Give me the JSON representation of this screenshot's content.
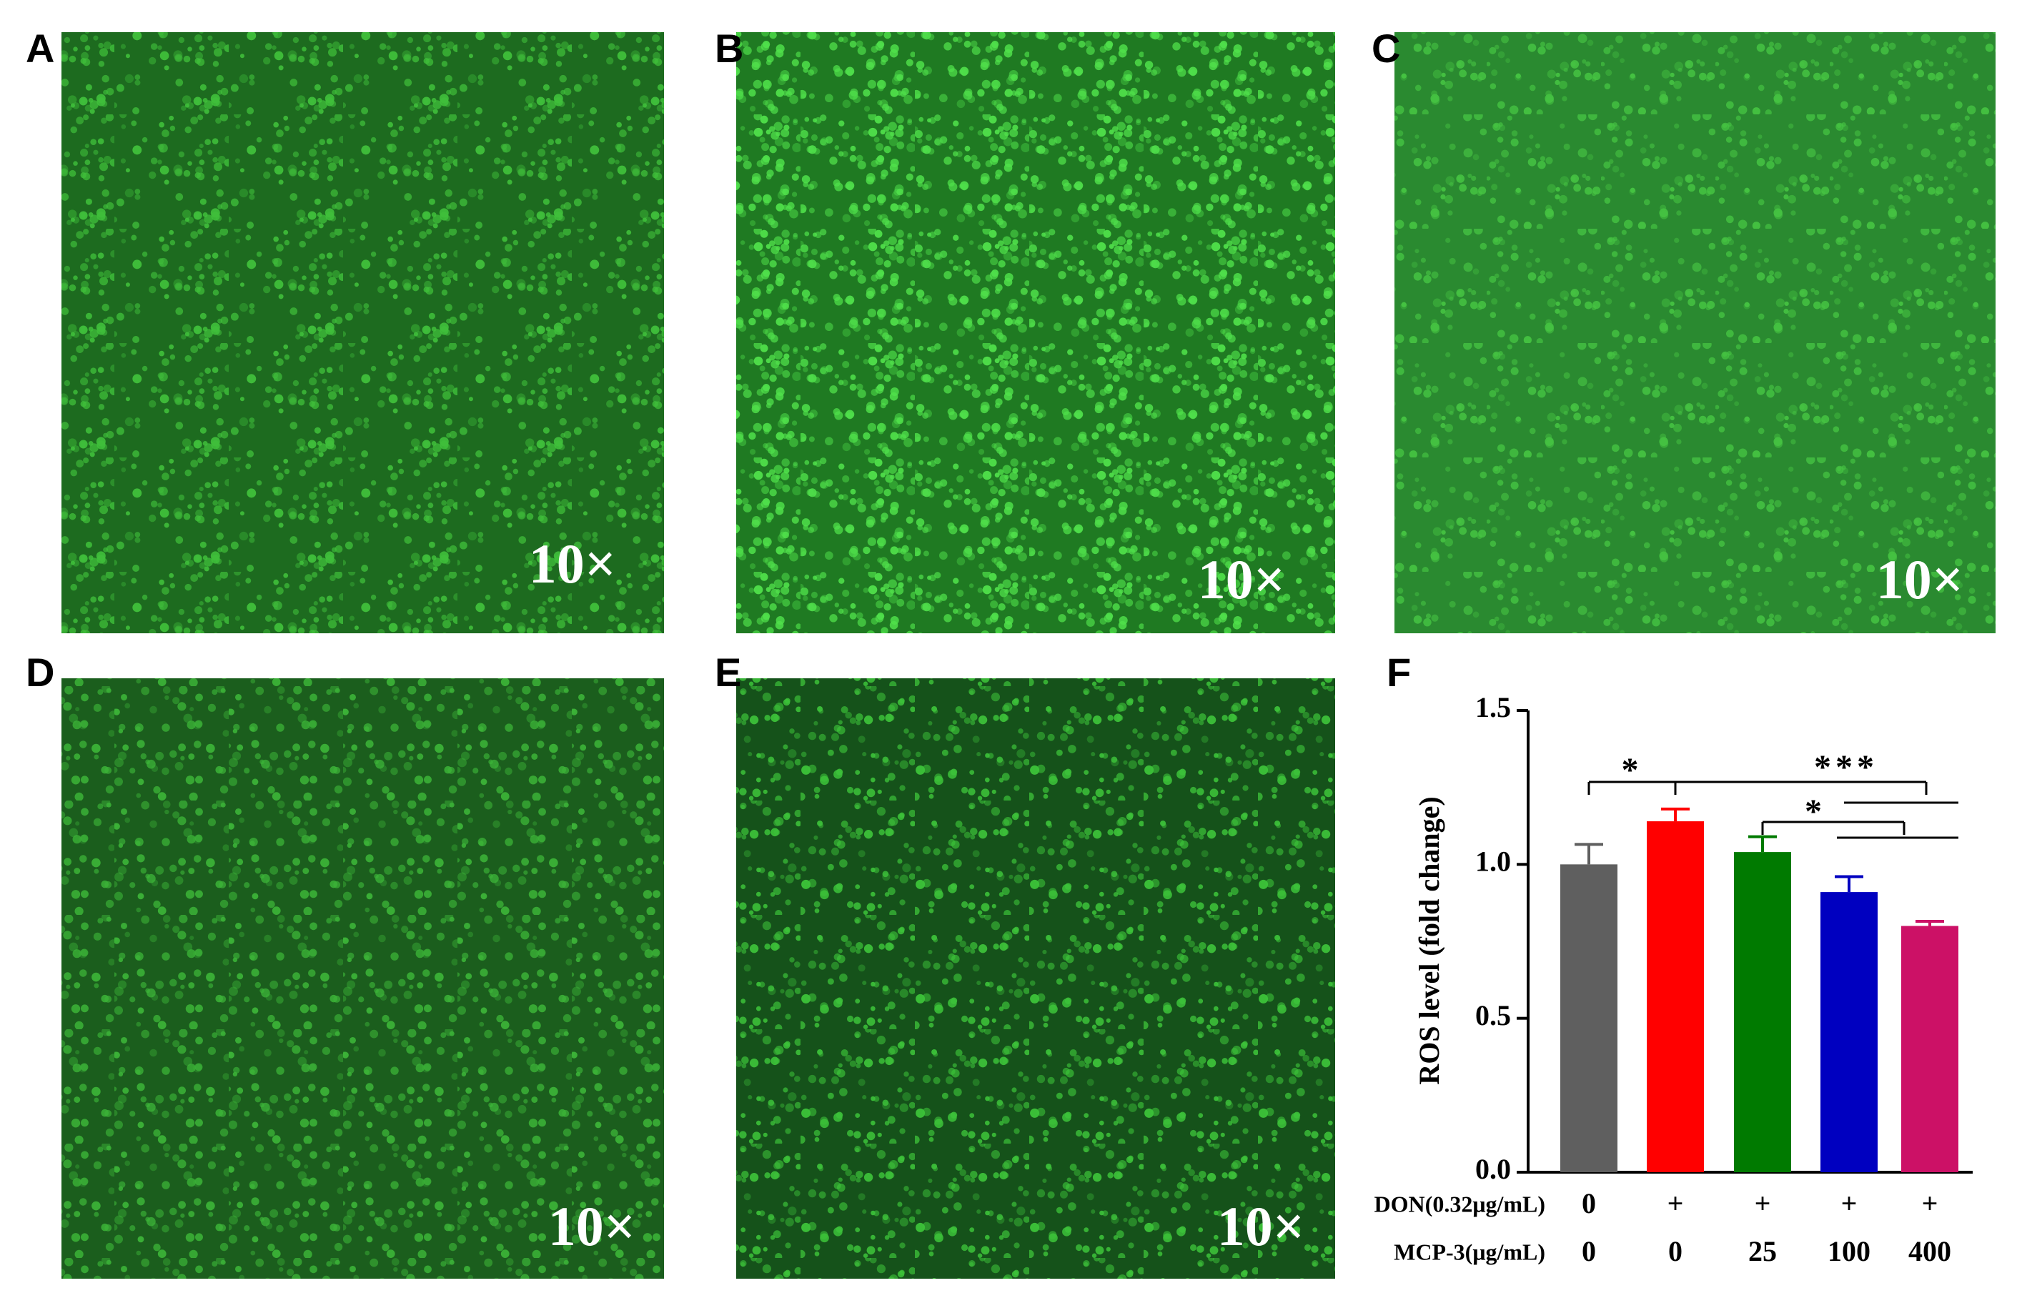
{
  "panels": [
    {
      "label": "A",
      "magnification": "10×"
    },
    {
      "label": "B",
      "magnification": "10×"
    },
    {
      "label": "C",
      "magnification": "10×"
    },
    {
      "label": "D",
      "magnification": "10×"
    },
    {
      "label": "E",
      "magnification": "10×"
    }
  ],
  "chart_data": {
    "type": "bar",
    "panel_label": "F",
    "y_label": "ROS level (fold change)",
    "ylim": [
      0,
      1.5
    ],
    "yticks": [
      {
        "value": 0,
        "label": "0.0"
      },
      {
        "value": 0.5,
        "label": "0.5"
      },
      {
        "value": 1,
        "label": "1.0"
      },
      {
        "value": 1.5,
        "label": "1.5"
      }
    ],
    "values": [
      1.0,
      1.14,
      1.04,
      0.91,
      0.8
    ],
    "errors": [
      0.065,
      0.04,
      0.05,
      0.05,
      0.015
    ],
    "colors": [
      "#5f5f5f",
      "#ff0000",
      "#007a00",
      "#0000c0",
      "#cc1166"
    ],
    "conditions": [
      {
        "name": "DON(0.32μg/mL)",
        "values": [
          "0",
          "+",
          "+",
          "+",
          "+"
        ]
      },
      {
        "name": "MCP-3(μg/mL)",
        "values": [
          "0",
          "0",
          "25",
          "100",
          "400"
        ]
      }
    ],
    "annotations": [
      "*",
      "***",
      "*"
    ]
  }
}
